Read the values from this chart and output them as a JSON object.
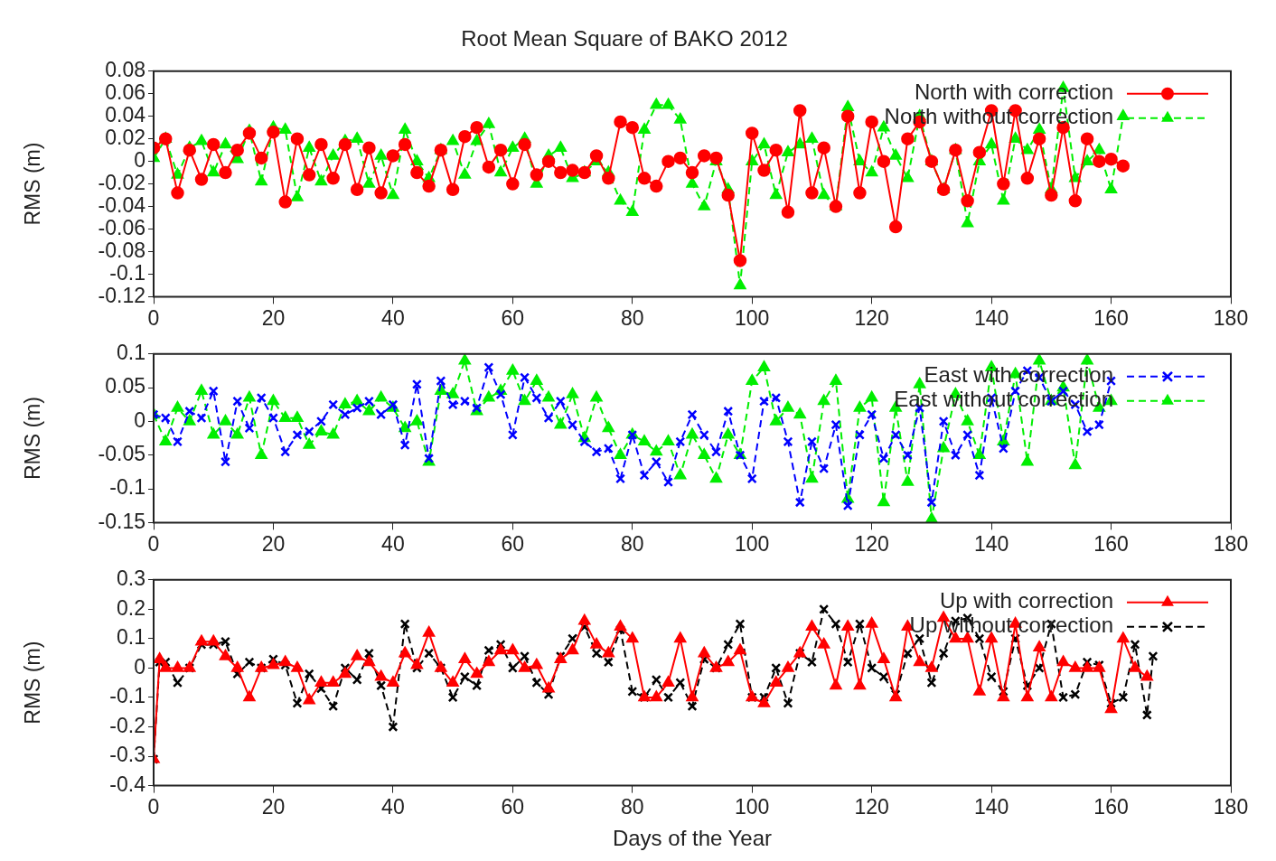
{
  "chart_data": [
    {
      "type": "line",
      "title": "Root Mean Square of BAKO 2012",
      "ylabel": "RMS (m)",
      "xlim": [
        0,
        180
      ],
      "xticks": [
        0,
        20,
        40,
        60,
        80,
        100,
        120,
        140,
        160,
        180
      ],
      "ylim": [
        -0.12,
        0.08
      ],
      "yticks": [
        -0.12,
        -0.1,
        -0.08,
        -0.06,
        -0.04,
        -0.02,
        0,
        0.02,
        0.04,
        0.06,
        0.08
      ],
      "grid": false,
      "legend": "top right",
      "x": [
        0,
        2,
        4,
        6,
        8,
        10,
        12,
        14,
        16,
        18,
        20,
        22,
        24,
        26,
        28,
        30,
        32,
        34,
        36,
        38,
        40,
        42,
        44,
        46,
        48,
        50,
        52,
        54,
        56,
        58,
        60,
        62,
        64,
        66,
        68,
        70,
        72,
        74,
        76,
        78,
        80,
        82,
        84,
        86,
        88,
        90,
        92,
        94,
        96,
        98,
        100,
        102,
        104,
        106,
        108,
        110,
        112,
        114,
        116,
        118,
        120,
        122,
        124,
        126,
        128,
        130,
        132,
        134,
        136,
        138,
        140,
        142,
        144,
        146,
        148,
        150,
        152,
        154,
        156,
        158,
        160,
        162
      ],
      "series": [
        {
          "name": "North with correction",
          "color": "#ff0000",
          "marker": "circle",
          "line_style": "solid",
          "values": [
            0.012,
            0.02,
            -0.028,
            0.01,
            -0.016,
            0.015,
            -0.01,
            0.01,
            0.025,
            0.003,
            0.026,
            -0.036,
            0.02,
            -0.012,
            0.015,
            -0.015,
            0.015,
            -0.025,
            0.012,
            -0.028,
            0.005,
            0.015,
            -0.01,
            -0.022,
            0.01,
            -0.025,
            0.022,
            0.03,
            -0.005,
            0.01,
            -0.02,
            0.015,
            -0.012,
            0,
            -0.01,
            -0.008,
            -0.01,
            0.005,
            -0.015,
            0.035,
            0.03,
            -0.015,
            -0.022,
            0,
            0.003,
            -0.01,
            0.005,
            0.003,
            -0.03,
            -0.088,
            0.025,
            -0.008,
            0.01,
            -0.045,
            0.045,
            -0.028,
            0.012,
            -0.04,
            0.04,
            -0.028,
            0.035,
            0,
            -0.058,
            0.02,
            0.035,
            0,
            -0.025,
            0.01,
            -0.035,
            0.008,
            0.045,
            -0.02,
            0.045,
            -0.015,
            0.02,
            -0.03,
            0.03,
            -0.035,
            0.02,
            0,
            0.002,
            -0.004
          ]
        },
        {
          "name": "North without correction",
          "color": "#00ee00",
          "marker": "triangle",
          "line_style": "dashed",
          "values": [
            0.003,
            0.02,
            -0.012,
            0.012,
            0.018,
            -0.01,
            0.015,
            0.002,
            0.027,
            -0.018,
            0.03,
            0.028,
            -0.032,
            0.012,
            -0.018,
            0.005,
            0.018,
            0.02,
            -0.02,
            0.005,
            -0.03,
            0.028,
            0,
            -0.015,
            0.01,
            0.018,
            -0.012,
            0.018,
            0.033,
            -0.01,
            0.012,
            0.02,
            -0.02,
            0.005,
            0.012,
            -0.015,
            -0.01,
            0,
            -0.01,
            -0.035,
            -0.045,
            0.028,
            0.05,
            0.05,
            0.037,
            -0.02,
            -0.04,
            0,
            -0.025,
            -0.11,
            0,
            0.015,
            -0.03,
            0.008,
            0.015,
            0.02,
            -0.03,
            -0.04,
            0.048,
            0,
            -0.01,
            0.03,
            0.005,
            -0.015,
            0.04,
            0,
            -0.025,
            0.01,
            -0.055,
            0,
            0.015,
            -0.035,
            0.02,
            0.01,
            0.028,
            -0.025,
            0.065,
            -0.015,
            0,
            0.01,
            -0.025,
            0.04
          ]
        }
      ]
    },
    {
      "type": "line",
      "ylabel": "RMS (m)",
      "xlim": [
        0,
        180
      ],
      "xticks": [
        0,
        20,
        40,
        60,
        80,
        100,
        120,
        140,
        160,
        180
      ],
      "ylim": [
        -0.15,
        0.1
      ],
      "yticks": [
        -0.15,
        -0.1,
        -0.05,
        0,
        0.05,
        0.1
      ],
      "grid": false,
      "legend": "top right",
      "x": [
        0,
        2,
        4,
        6,
        8,
        10,
        12,
        14,
        16,
        18,
        20,
        22,
        24,
        26,
        28,
        30,
        32,
        34,
        36,
        38,
        40,
        42,
        44,
        46,
        48,
        50,
        52,
        54,
        56,
        58,
        60,
        62,
        64,
        66,
        68,
        70,
        72,
        74,
        76,
        78,
        80,
        82,
        84,
        86,
        88,
        90,
        92,
        94,
        96,
        98,
        100,
        102,
        104,
        106,
        108,
        110,
        112,
        114,
        116,
        118,
        120,
        122,
        124,
        126,
        128,
        130,
        132,
        134,
        136,
        138,
        140,
        142,
        144,
        146,
        148,
        150,
        152,
        154,
        156,
        158,
        160
      ],
      "series": [
        {
          "name": "East with correction",
          "color": "#0000ff",
          "marker": "cross",
          "line_style": "dashed",
          "values": [
            0.01,
            0.005,
            -0.03,
            0.015,
            0.005,
            0.045,
            -0.06,
            0.03,
            -0.01,
            0.035,
            0.005,
            -0.045,
            -0.02,
            -0.015,
            0,
            0.025,
            0.01,
            0.02,
            0.03,
            0.01,
            0.025,
            -0.035,
            0.055,
            -0.055,
            0.06,
            0.025,
            0.03,
            0.02,
            0.08,
            0.04,
            -0.02,
            0.065,
            0.035,
            0.005,
            0.03,
            -0.005,
            -0.03,
            -0.045,
            -0.04,
            -0.085,
            -0.02,
            -0.08,
            -0.06,
            -0.09,
            -0.03,
            0.01,
            -0.02,
            -0.045,
            0.015,
            -0.05,
            -0.085,
            0.03,
            0.035,
            -0.03,
            -0.12,
            -0.03,
            -0.07,
            -0.005,
            -0.125,
            -0.02,
            0.01,
            -0.055,
            -0.02,
            -0.05,
            0.02,
            -0.12,
            0,
            -0.05,
            -0.02,
            -0.08,
            0.035,
            -0.04,
            0.045,
            0.075,
            0.065,
            0.03,
            0.045,
            0.025,
            -0.015,
            -0.005,
            0.06
          ]
        },
        {
          "name": "East without correction",
          "color": "#00ee00",
          "marker": "triangle",
          "line_style": "dashed",
          "values": [
            0.01,
            -0.03,
            0.02,
            0,
            0.045,
            -0.02,
            0,
            -0.02,
            0.035,
            -0.05,
            0.03,
            0.005,
            0.005,
            -0.035,
            -0.015,
            -0.02,
            0.025,
            0.03,
            0.015,
            0.035,
            0.02,
            -0.01,
            0,
            -0.06,
            0.045,
            0.04,
            0.09,
            0.015,
            0.035,
            0.045,
            0.075,
            0.03,
            0.06,
            0.035,
            -0.005,
            0.04,
            -0.025,
            0.035,
            -0.01,
            -0.05,
            -0.02,
            -0.03,
            -0.045,
            -0.03,
            -0.08,
            -0.02,
            -0.05,
            -0.085,
            -0.02,
            -0.05,
            0.06,
            0.08,
            0,
            0.02,
            0.01,
            -0.085,
            0.03,
            0.06,
            -0.115,
            0.02,
            0.035,
            -0.12,
            0.02,
            -0.09,
            0.055,
            -0.145,
            -0.04,
            0.04,
            0,
            -0.05,
            0.08,
            -0.03,
            0.07,
            -0.06,
            0.09,
            0.03,
            0.05,
            -0.065,
            0.09,
            0.02,
            0.03
          ]
        }
      ]
    },
    {
      "type": "line",
      "xlabel": "Days of the Year",
      "ylabel": "RMS (m)",
      "xlim": [
        0,
        180
      ],
      "xticks": [
        0,
        20,
        40,
        60,
        80,
        100,
        120,
        140,
        160,
        180
      ],
      "ylim": [
        -0.4,
        0.3
      ],
      "yticks": [
        -0.4,
        -0.3,
        -0.2,
        -0.1,
        0,
        0.1,
        0.2,
        0.3
      ],
      "grid": false,
      "legend": "top right",
      "x": [
        0,
        1,
        2,
        4,
        6,
        8,
        10,
        12,
        14,
        16,
        18,
        20,
        22,
        24,
        26,
        28,
        30,
        32,
        34,
        36,
        38,
        40,
        42,
        44,
        46,
        48,
        50,
        52,
        54,
        56,
        58,
        60,
        62,
        64,
        66,
        68,
        70,
        72,
        74,
        76,
        78,
        80,
        82,
        84,
        86,
        88,
        90,
        92,
        94,
        96,
        98,
        100,
        102,
        104,
        106,
        108,
        110,
        112,
        114,
        116,
        118,
        120,
        122,
        124,
        126,
        128,
        130,
        132,
        134,
        136,
        138,
        140,
        142,
        144,
        146,
        148,
        150,
        152,
        154,
        156,
        158,
        160,
        162,
        164,
        166
      ],
      "series": [
        {
          "name": "Up with correction",
          "color": "#ff0000",
          "marker": "triangle",
          "line_style": "solid",
          "values": [
            -0.31,
            0.03,
            0,
            0,
            0,
            0.09,
            0.09,
            0.04,
            0,
            -0.1,
            0,
            0.01,
            0.02,
            0,
            -0.11,
            -0.05,
            -0.05,
            -0.02,
            0.04,
            0.02,
            -0.03,
            -0.05,
            0.05,
            0.01,
            0.12,
            0,
            -0.05,
            0.03,
            -0.02,
            0.02,
            0.06,
            0.06,
            0,
            0.01,
            -0.07,
            0.03,
            0.06,
            0.16,
            0.08,
            0.05,
            0.14,
            0.1,
            -0.1,
            -0.1,
            -0.05,
            0.1,
            -0.1,
            0.05,
            0,
            0.02,
            0.06,
            -0.1,
            -0.12,
            -0.05,
            0,
            0.05,
            0.14,
            0.08,
            -0.06,
            0.14,
            -0.06,
            0.15,
            0.03,
            -0.1,
            0.14,
            0.02,
            0,
            0.17,
            0.1,
            0.1,
            -0.08,
            0.1,
            -0.1,
            0.15,
            -0.1,
            0.07,
            -0.1,
            0.02,
            0,
            0,
            0,
            -0.14,
            0.1,
            0,
            -0.03
          ]
        },
        {
          "name": "Up without correction",
          "color": "#000000",
          "marker": "cross",
          "line_style": "dashed",
          "x": [
            0,
            1,
            2,
            4,
            6,
            8,
            10,
            12,
            14,
            16,
            18,
            20,
            22,
            24,
            26,
            28,
            30,
            32,
            34,
            36,
            38,
            40,
            42,
            44,
            46,
            48,
            50,
            52,
            54,
            56,
            58,
            60,
            62,
            64,
            66,
            68,
            70,
            72,
            74,
            76,
            78,
            80,
            82,
            84,
            86,
            88,
            90,
            92,
            94,
            96,
            98,
            100,
            102,
            104,
            106,
            108,
            110,
            112,
            114,
            116,
            118,
            120,
            122,
            124,
            126,
            128,
            130,
            132,
            134,
            136,
            138,
            140,
            142,
            144,
            146,
            148,
            150,
            152,
            154,
            156,
            158,
            160,
            162,
            164,
            166,
            167
          ],
          "values": [
            -0.31,
            0.02,
            0.02,
            -0.05,
            0,
            0.08,
            0.08,
            0.09,
            -0.02,
            0.02,
            0,
            0.03,
            0.01,
            -0.12,
            -0.02,
            -0.07,
            -0.13,
            0,
            -0.04,
            0.05,
            -0.06,
            -0.2,
            0.15,
            0,
            0.05,
            0,
            -0.1,
            -0.03,
            -0.06,
            0.06,
            0.08,
            0,
            0.04,
            -0.05,
            -0.09,
            0.04,
            0.1,
            0.14,
            0.05,
            0.02,
            0.13,
            -0.08,
            -0.1,
            -0.04,
            -0.1,
            -0.05,
            -0.13,
            0.03,
            0,
            0.08,
            0.15,
            -0.1,
            -0.1,
            0,
            -0.12,
            0.05,
            0.02,
            0.2,
            0.15,
            0.02,
            0.15,
            0,
            -0.03,
            -0.09,
            0.05,
            0.1,
            -0.05,
            0.05,
            0.16,
            0.17,
            0.1,
            -0.03,
            -0.08,
            0.1,
            -0.06,
            0,
            0.15,
            -0.1,
            -0.09,
            0.02,
            0.01,
            -0.12,
            -0.1,
            0.08,
            -0.16,
            0.04
          ]
        }
      ]
    }
  ]
}
